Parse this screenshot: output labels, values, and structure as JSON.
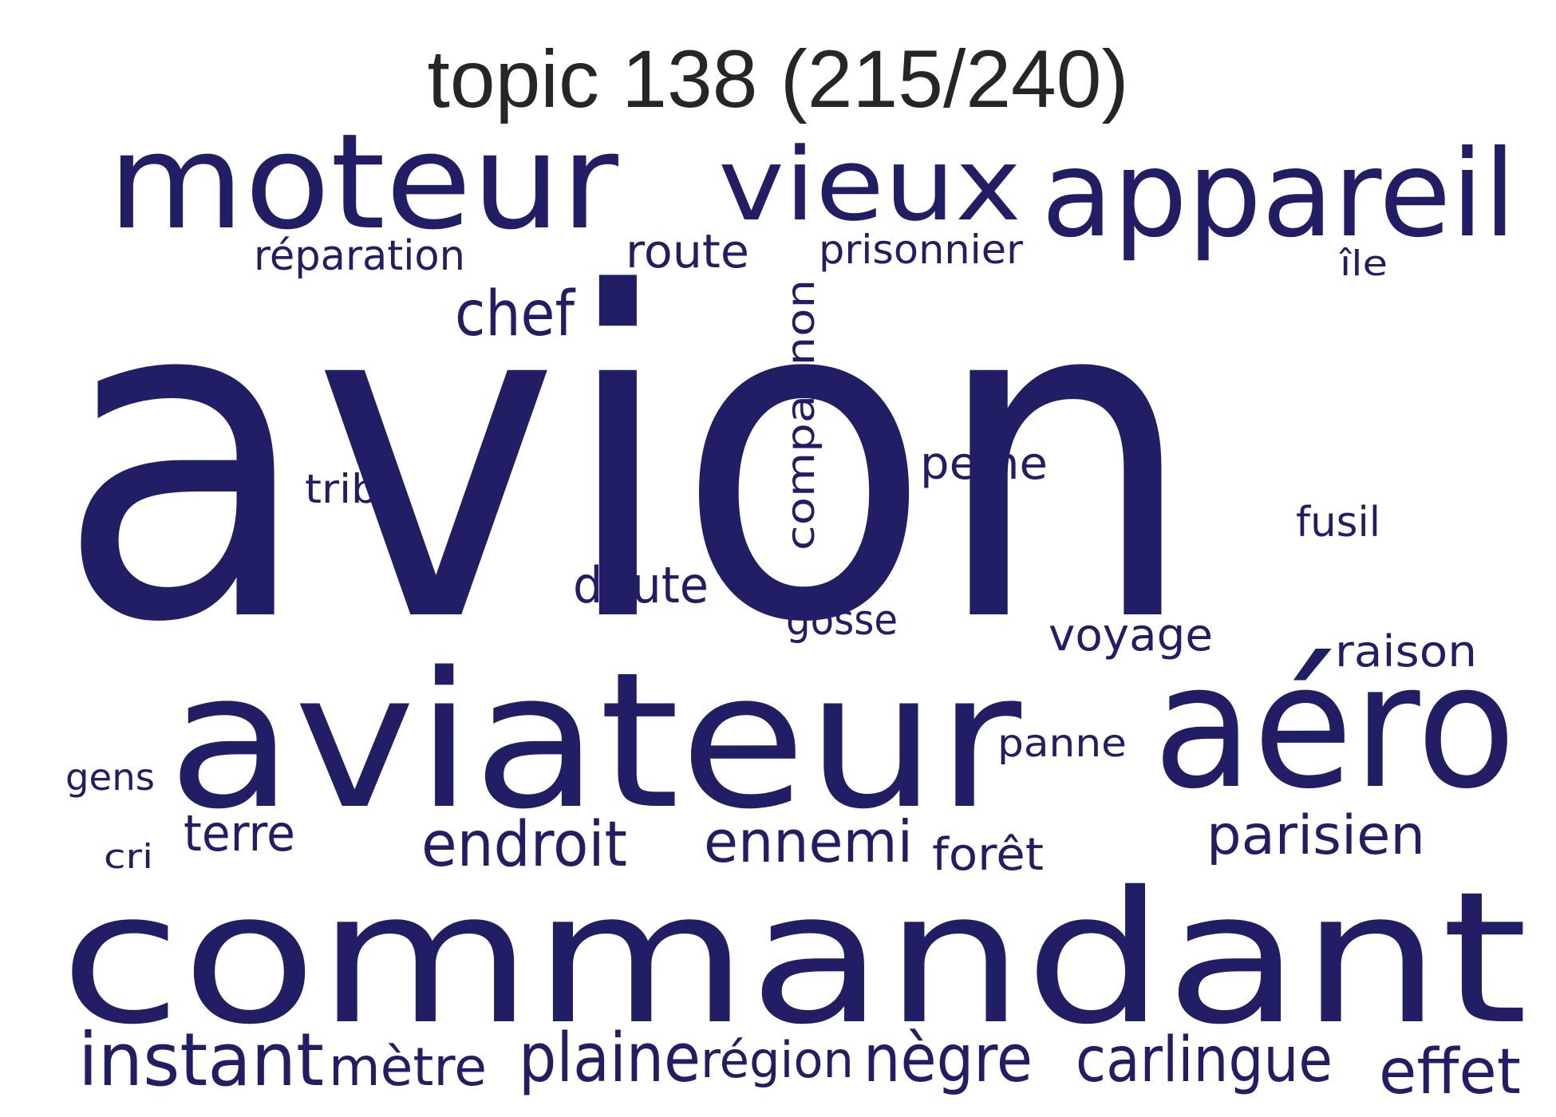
{
  "title": "topic 138 (215/240)",
  "word_color": "#221e66",
  "words": [
    "avion",
    "commandant",
    "aviateur",
    "aéro",
    "moteur",
    "appareil",
    "vieux",
    "chef",
    "endroit",
    "ennemi",
    "parisien",
    "instant",
    "plaine",
    "nègre",
    "carlingue",
    "effet",
    "mètre",
    "région",
    "terre",
    "doute",
    "route",
    "réparation",
    "prisonnier",
    "compagnon",
    "peine",
    "tribu",
    "fusil",
    "gosse",
    "voyage",
    "raison",
    "panne",
    "forêt",
    "gens",
    "cri",
    "île"
  ]
}
